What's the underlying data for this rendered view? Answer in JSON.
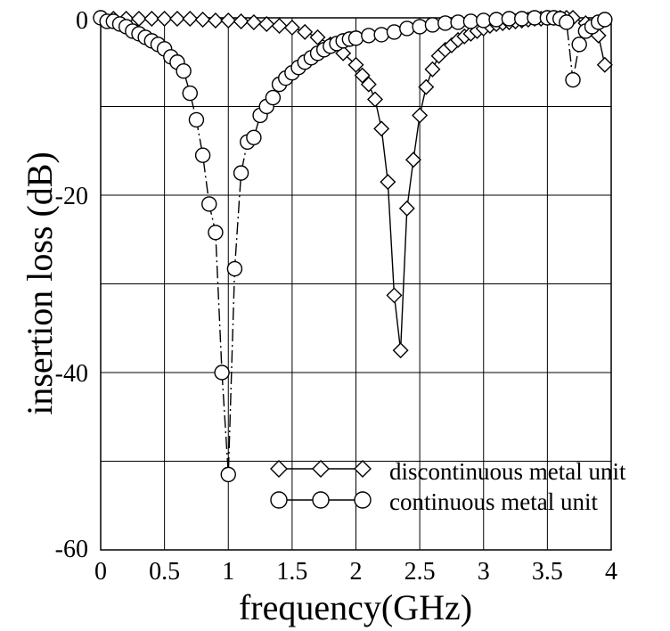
{
  "chart_data": {
    "type": "line",
    "xlabel": "frequency(GHz)",
    "ylabel": "insertion loss (dB)",
    "xlim": [
      0,
      4
    ],
    "ylim": [
      -60,
      0
    ],
    "x_ticks": [
      "0",
      "0.5",
      "1",
      "1.5",
      "2",
      "2.5",
      "3",
      "3.5",
      "4"
    ],
    "y_ticks": [
      "0",
      "-20",
      "-40",
      "-60"
    ],
    "grid": true,
    "legend_position": "bottom-right",
    "series": [
      {
        "name": "discontinuous metal unit",
        "marker": "diamond",
        "line": "solid",
        "x": [
          0,
          0.1,
          0.2,
          0.3,
          0.4,
          0.5,
          0.6,
          0.7,
          0.8,
          0.9,
          1.0,
          1.1,
          1.2,
          1.3,
          1.4,
          1.5,
          1.6,
          1.7,
          1.8,
          1.9,
          2.0,
          2.05,
          2.1,
          2.15,
          2.2,
          2.25,
          2.3,
          2.35,
          2.4,
          2.45,
          2.5,
          2.55,
          2.6,
          2.65,
          2.7,
          2.75,
          2.8,
          2.85,
          2.9,
          2.95,
          3.0,
          3.05,
          3.1,
          3.15,
          3.2,
          3.25,
          3.3,
          3.35,
          3.4,
          3.45,
          3.5,
          3.55,
          3.6,
          3.65,
          3.7,
          3.8,
          3.9,
          3.95
        ],
        "y": [
          0,
          -0.1,
          -0.1,
          -0.1,
          -0.1,
          -0.1,
          -0.1,
          -0.1,
          -0.2,
          -0.3,
          -0.3,
          -0.4,
          -0.5,
          -0.7,
          -0.9,
          -1.1,
          -1.6,
          -2.2,
          -3.0,
          -4.0,
          -5.3,
          -6.5,
          -7.5,
          -9.2,
          -12.5,
          -18.5,
          -31.3,
          -37.5,
          -21.5,
          -16,
          -11,
          -7.8,
          -5.8,
          -4.3,
          -3.6,
          -3.1,
          -2.5,
          -2.1,
          -1.8,
          -1.5,
          -1.2,
          -0.9,
          -0.7,
          -0.6,
          -0.5,
          -0.4,
          -0.3,
          -0.2,
          -0.1,
          -0.1,
          0,
          0,
          0,
          0,
          0,
          -0.6,
          -2,
          -5.3
        ]
      },
      {
        "name": "continuous metal unit",
        "marker": "circle",
        "line": "dashdot",
        "x": [
          0,
          0.05,
          0.1,
          0.15,
          0.2,
          0.25,
          0.3,
          0.35,
          0.4,
          0.45,
          0.5,
          0.55,
          0.6,
          0.65,
          0.7,
          0.75,
          0.8,
          0.85,
          0.9,
          0.95,
          1.0,
          1.05,
          1.1,
          1.15,
          1.2,
          1.25,
          1.3,
          1.35,
          1.4,
          1.45,
          1.5,
          1.55,
          1.6,
          1.65,
          1.7,
          1.75,
          1.8,
          1.85,
          1.9,
          1.95,
          2.0,
          2.1,
          2.2,
          2.3,
          2.4,
          2.5,
          2.6,
          2.7,
          2.8,
          2.9,
          3.0,
          3.1,
          3.2,
          3.3,
          3.4,
          3.5,
          3.55,
          3.6,
          3.65,
          3.7,
          3.75,
          3.8,
          3.85,
          3.9,
          3.95
        ],
        "y": [
          0,
          -0.4,
          -0.4,
          -0.7,
          -1,
          -1.5,
          -1.8,
          -2.2,
          -2.6,
          -3.0,
          -3.5,
          -4.4,
          -5.0,
          -6.0,
          -8.5,
          -11.5,
          -15.5,
          -21.0,
          -24.2,
          -40,
          -51.5,
          -28.3,
          -17.5,
          -14.0,
          -13.5,
          -11.0,
          -10.0,
          -9.0,
          -7.5,
          -6.8,
          -6.2,
          -5.6,
          -5.0,
          -4.5,
          -4.0,
          -3.6,
          -3.2,
          -2.9,
          -2.6,
          -2.4,
          -2.3,
          -2.0,
          -1.9,
          -1.6,
          -1.2,
          -1.0,
          -0.8,
          -0.6,
          -0.5,
          -0.4,
          -0.3,
          -0.2,
          -0.1,
          -0.1,
          0,
          0,
          0,
          -0.1,
          -0.5,
          -7.0,
          -3.0,
          -1.5,
          -1.0,
          -0.5,
          -0.2
        ]
      }
    ]
  }
}
